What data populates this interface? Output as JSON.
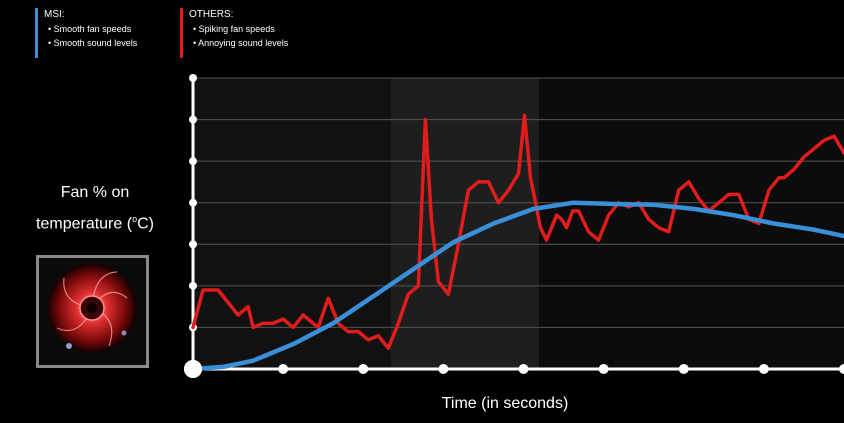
{
  "legend": {
    "msi": {
      "title": "MSI:",
      "items": [
        "• Smooth fan speeds",
        "• Smooth sound levels"
      ],
      "color": "#3a8fd9"
    },
    "others": {
      "title": "OTHERS:",
      "items": [
        "• Spiking fan speeds",
        "• Annoying sound levels"
      ],
      "color": "#e01c1c"
    }
  },
  "fan_image": {
    "icon": "red-led-fan-icon"
  },
  "chart_data": {
    "type": "line",
    "ylabel_line1": "Fan % on",
    "ylabel_line2": "temperature (",
    "ylabel_unit": "o",
    "ylabel_suffix": "C)",
    "xlabel": "Time (in seconds)",
    "xlim": [
      0,
      650
    ],
    "ylim": [
      0,
      7
    ],
    "grid": true,
    "x_ticks": [
      0,
      90,
      170,
      250,
      330,
      410,
      490,
      570,
      650
    ],
    "y_ticks": [
      1,
      2,
      3,
      4,
      5,
      6,
      7
    ],
    "series": [
      {
        "name": "MSI",
        "color": "#3a8fd9",
        "x": [
          0,
          30,
          60,
          100,
          140,
          180,
          220,
          260,
          300,
          340,
          380,
          420,
          460,
          500,
          540,
          580,
          620,
          650
        ],
        "y": [
          0,
          0.05,
          0.2,
          0.6,
          1.1,
          1.75,
          2.4,
          3.05,
          3.5,
          3.85,
          4.0,
          3.97,
          3.95,
          3.85,
          3.7,
          3.5,
          3.35,
          3.2
        ]
      },
      {
        "name": "OTHERS",
        "color": "#e01c1c",
        "x": [
          0,
          10,
          25,
          35,
          45,
          55,
          60,
          70,
          80,
          90,
          100,
          110,
          125,
          135,
          145,
          155,
          165,
          175,
          185,
          195,
          205,
          215,
          225,
          232,
          238,
          245,
          255,
          265,
          275,
          285,
          295,
          305,
          315,
          325,
          331,
          337,
          342,
          347,
          353,
          358,
          363,
          368,
          373,
          379,
          385,
          395,
          405,
          415,
          425,
          435,
          445,
          455,
          465,
          475,
          485,
          495,
          505,
          515,
          525,
          535,
          545,
          555,
          565,
          575,
          585,
          590,
          600,
          610,
          620,
          630,
          640,
          645,
          650
        ],
        "y": [
          1.0,
          1.9,
          1.9,
          1.6,
          1.3,
          1.5,
          1.0,
          1.1,
          1.1,
          1.2,
          1.0,
          1.3,
          1.0,
          1.7,
          1.1,
          0.9,
          0.9,
          0.7,
          0.8,
          0.5,
          1.1,
          1.8,
          2.0,
          6.0,
          3.6,
          2.1,
          1.8,
          3.0,
          4.3,
          4.5,
          4.5,
          4.0,
          4.3,
          4.7,
          6.1,
          4.6,
          4.0,
          3.4,
          3.1,
          3.4,
          3.7,
          3.6,
          3.4,
          3.8,
          3.8,
          3.3,
          3.1,
          3.7,
          4.0,
          3.9,
          4.0,
          3.6,
          3.4,
          3.3,
          4.3,
          4.5,
          4.1,
          3.8,
          4.0,
          4.2,
          4.2,
          3.6,
          3.5,
          4.3,
          4.6,
          4.6,
          4.8,
          5.1,
          5.3,
          5.5,
          5.6,
          5.4,
          5.2
        ]
      }
    ]
  }
}
